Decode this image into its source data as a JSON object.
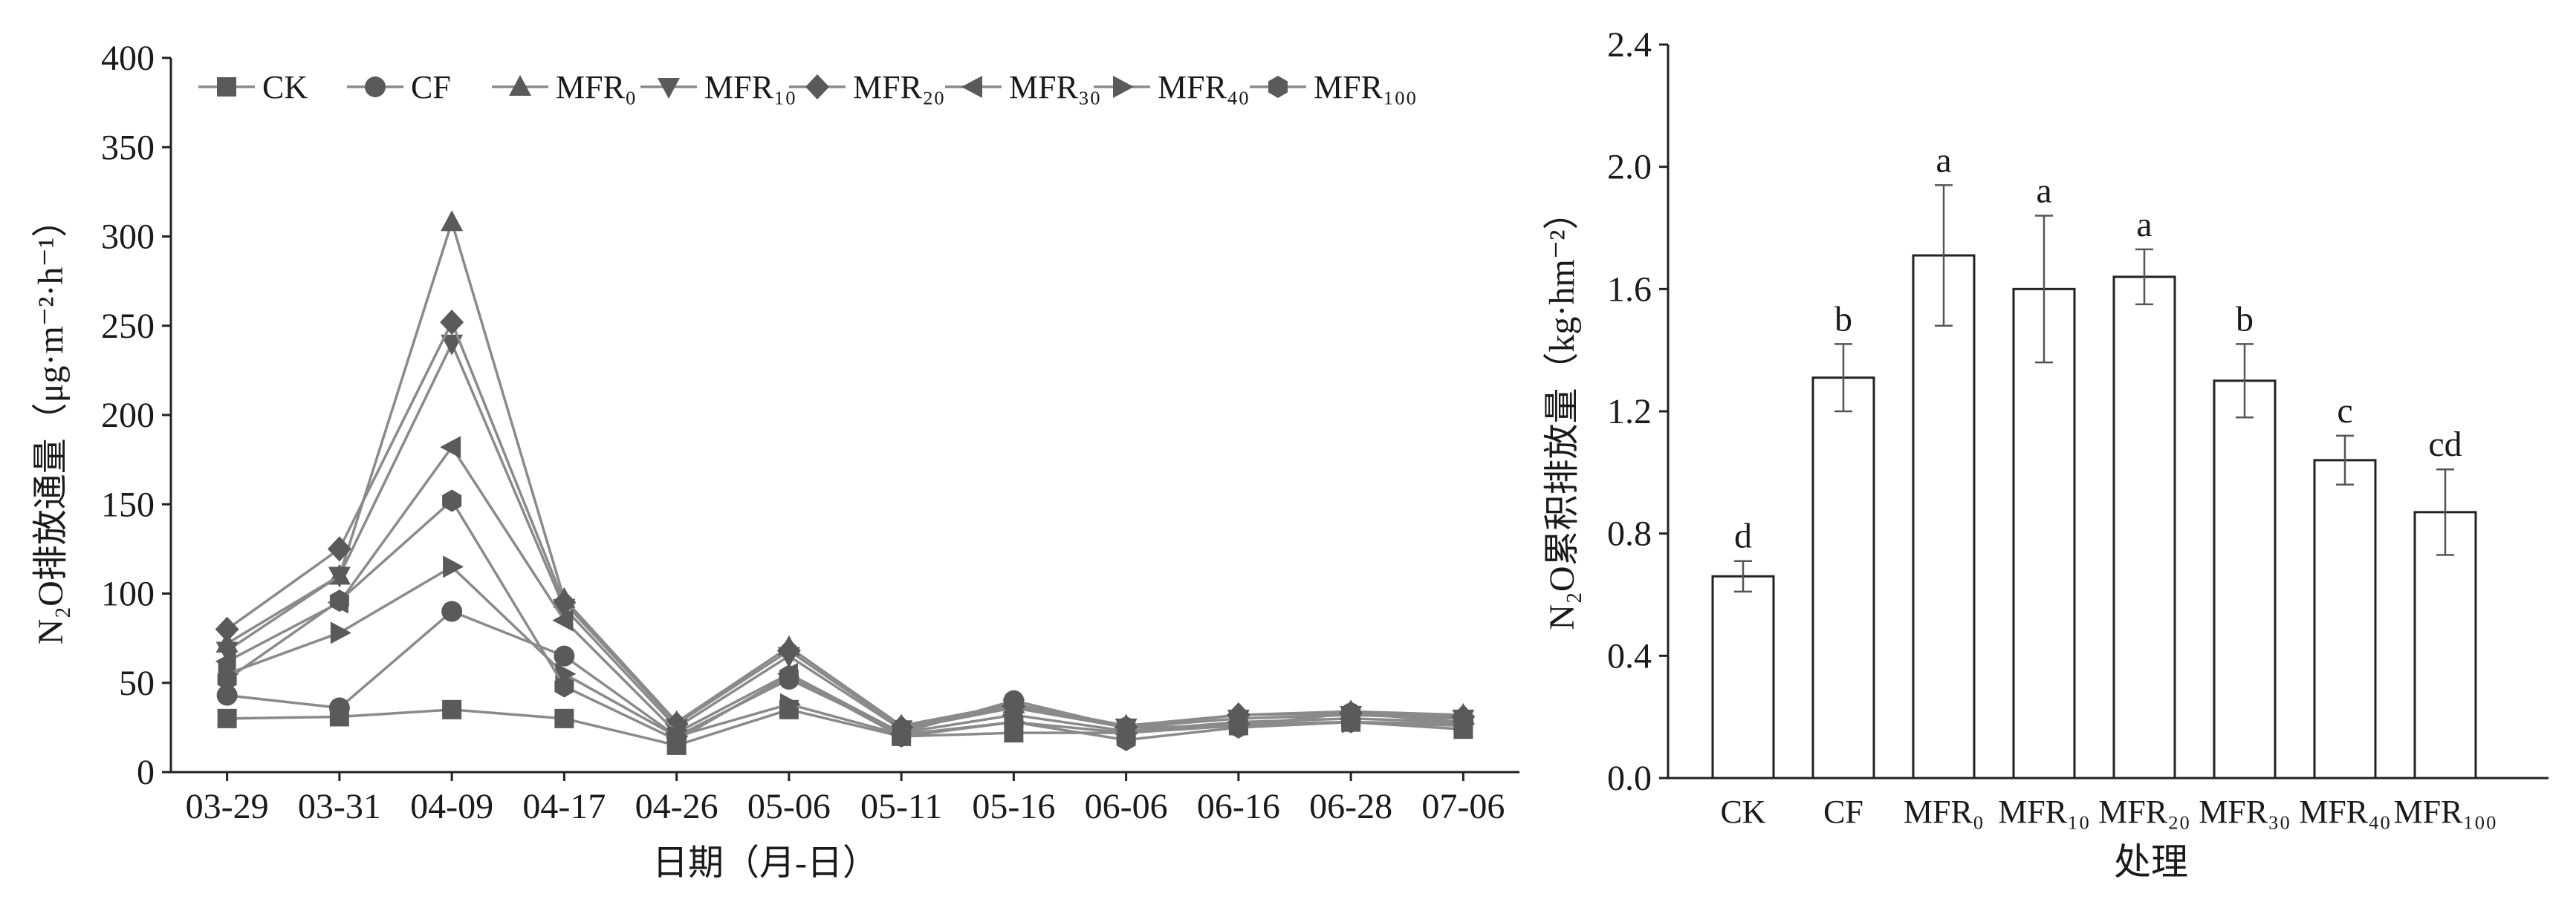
{
  "chart_data": [
    {
      "type": "line",
      "title": "",
      "xlabel": "日期（月-日）",
      "ylabel": "N₂O排放通量（μg·m⁻²·h⁻¹）",
      "ylim": [
        0,
        400
      ],
      "yticks": [
        0,
        50,
        100,
        150,
        200,
        250,
        300,
        350,
        400
      ],
      "grid": false,
      "legend_position": "top",
      "categories": [
        "03-29",
        "03-31",
        "04-09",
        "04-17",
        "04-26",
        "05-06",
        "05-11",
        "05-16",
        "06-06",
        "06-16",
        "06-28",
        "07-06"
      ],
      "series": [
        {
          "name": "CK",
          "marker": "square",
          "values": [
            30,
            31,
            35,
            30,
            15,
            35,
            20,
            22,
            22,
            26,
            28,
            24
          ]
        },
        {
          "name": "CF",
          "marker": "circle",
          "values": [
            43,
            36,
            90,
            65,
            20,
            52,
            22,
            40,
            25,
            26,
            33,
            28
          ]
        },
        {
          "name": "MFR₀",
          "marker": "triangle-up",
          "values": [
            72,
            110,
            308,
            97,
            28,
            70,
            26,
            38,
            26,
            32,
            34,
            32
          ]
        },
        {
          "name": "MFR₁₀",
          "marker": "triangle-down",
          "values": [
            68,
            110,
            240,
            92,
            25,
            65,
            24,
            36,
            25,
            30,
            32,
            30
          ]
        },
        {
          "name": "MFR₂₀",
          "marker": "diamond",
          "values": [
            80,
            125,
            252,
            95,
            27,
            68,
            25,
            37,
            25,
            32,
            33,
            31
          ]
        },
        {
          "name": "MFR₃₀",
          "marker": "triangle-left",
          "values": [
            62,
            95,
            182,
            85,
            22,
            55,
            22,
            32,
            23,
            28,
            30,
            28
          ]
        },
        {
          "name": "MFR₄₀",
          "marker": "triangle-right",
          "values": [
            55,
            78,
            115,
            55,
            20,
            38,
            21,
            28,
            22,
            27,
            28,
            27
          ]
        },
        {
          "name": "MFR₁₀₀",
          "marker": "hexagon",
          "values": [
            52,
            96,
            152,
            48,
            18,
            54,
            20,
            28,
            18,
            25,
            28,
            26
          ]
        }
      ]
    },
    {
      "type": "bar",
      "title": "",
      "xlabel": "处理",
      "ylabel": "N₂O累积排放量（kg·hm⁻²）",
      "ylim": [
        0,
        2.4
      ],
      "yticks": [
        "0.0",
        "0.4",
        "0.8",
        "1.2",
        "1.6",
        "2.0",
        "2.4"
      ],
      "grid": false,
      "categories": [
        "CK",
        "CF",
        "MFR₀",
        "MFR₁₀",
        "MFR₂₀",
        "MFR₃₀",
        "MFR₄₀",
        "MFR₁₀₀"
      ],
      "values": [
        0.66,
        1.31,
        1.71,
        1.6,
        1.64,
        1.3,
        1.04,
        0.87
      ],
      "errors": [
        0.05,
        0.11,
        0.23,
        0.24,
        0.09,
        0.12,
        0.08,
        0.14
      ],
      "significance": [
        "d",
        "b",
        "a",
        "a",
        "a",
        "b",
        "c",
        "cd"
      ]
    }
  ]
}
